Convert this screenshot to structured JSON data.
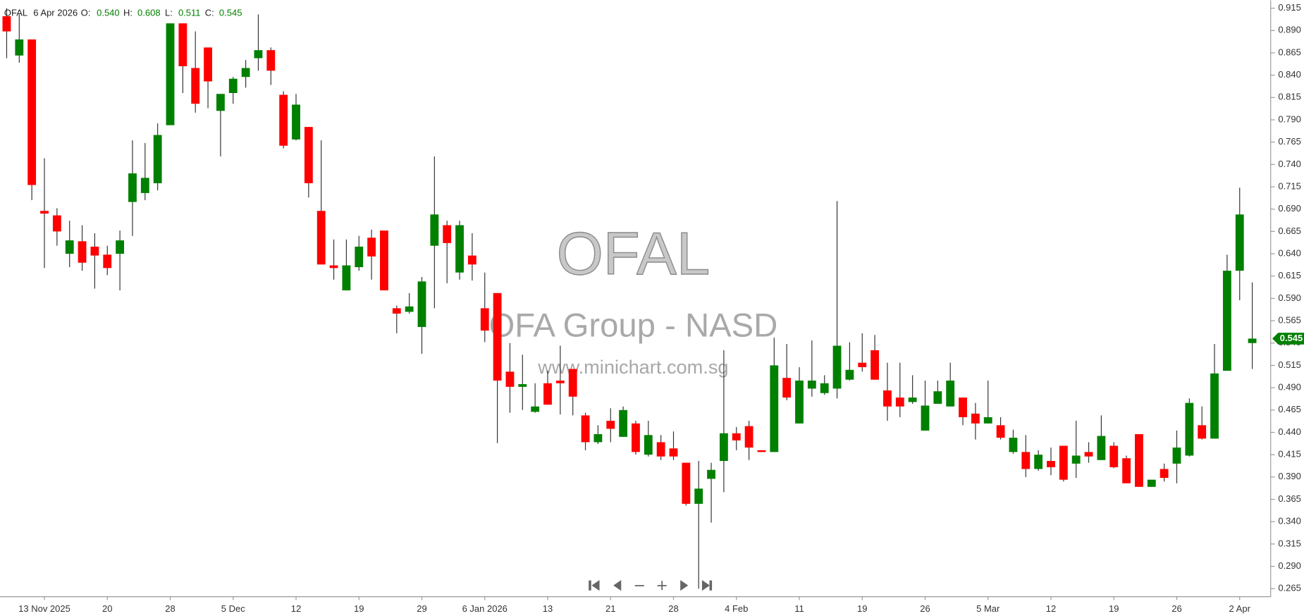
{
  "header": {
    "symbol": "OFAL",
    "date": "6 Apr 2026",
    "fields": [
      {
        "key": "O:",
        "value": "0.540"
      },
      {
        "key": "H:",
        "value": "0.608"
      },
      {
        "key": "L:",
        "value": "0.511"
      },
      {
        "key": "C:",
        "value": "0.545"
      }
    ]
  },
  "watermark": {
    "symbol": "OFAL",
    "name": "OFA Group - NASD",
    "site": "www.minichart.com.sg"
  },
  "chart_data": {
    "type": "candlestick",
    "up_color": "#008000",
    "down_color": "#ff0000",
    "wick_color": "#333333",
    "ylim": [
      0.256,
      0.924
    ],
    "yticks": [
      0.265,
      {
        "value": 0.29,
        "label": "0.290"
      },
      0.315,
      {
        "value": 0.34,
        "label": "0.340"
      },
      0.365,
      {
        "value": 0.39,
        "label": "0.390"
      },
      0.415,
      {
        "value": 0.44,
        "label": "0.440"
      },
      0.465,
      {
        "value": 0.49,
        "label": "0.490"
      },
      0.515,
      {
        "value": 0.54,
        "label": "0.540"
      },
      0.565,
      {
        "value": 0.59,
        "label": "0.590"
      },
      0.615,
      {
        "value": 0.64,
        "label": "0.640"
      },
      0.665,
      {
        "value": 0.69,
        "label": "0.690"
      },
      0.715,
      {
        "value": 0.74,
        "label": "0.740"
      },
      0.765,
      {
        "value": 0.79,
        "label": "0.790"
      },
      0.815,
      {
        "value": 0.84,
        "label": "0.840"
      },
      0.865,
      {
        "value": 0.89,
        "label": "0.890"
      },
      0.915
    ],
    "categories": [
      null,
      null,
      null,
      "13 Nov 2025",
      null,
      null,
      null,
      null,
      "20",
      null,
      null,
      null,
      null,
      "28",
      null,
      null,
      null,
      null,
      "5 Dec",
      null,
      null,
      null,
      null,
      "12",
      null,
      null,
      null,
      null,
      "19",
      null,
      null,
      null,
      null,
      "29",
      null,
      null,
      null,
      null,
      "6 Jan 2026",
      null,
      null,
      null,
      null,
      "13",
      null,
      null,
      null,
      null,
      "21",
      null,
      null,
      null,
      null,
      "28",
      null,
      null,
      null,
      null,
      "4 Feb",
      null,
      null,
      null,
      null,
      "11",
      null,
      null,
      null,
      null,
      "19",
      null,
      null,
      null,
      null,
      "26",
      null,
      null,
      null,
      null,
      "5 Mar",
      null,
      null,
      null,
      null,
      "12",
      null,
      null,
      null,
      null,
      "19",
      null,
      null,
      null,
      null,
      "26",
      null,
      null,
      null,
      null,
      "2 Apr",
      null
    ],
    "open": [
      0.906,
      0.862,
      0.88,
      0.688,
      0.683,
      0.64,
      0.654,
      0.648,
      0.639,
      0.64,
      0.698,
      0.708,
      0.719,
      0.784,
      0.898,
      0.848,
      0.871,
      0.8,
      0.82,
      0.838,
      0.859,
      0.868,
      0.818,
      0.768,
      0.782,
      0.688,
      0.627,
      0.599,
      0.625,
      0.658,
      0.666,
      0.579,
      0.575,
      0.558,
      0.649,
      0.672,
      0.619,
      0.638,
      0.579,
      0.596,
      0.508,
      0.491,
      0.463,
      0.495,
      0.498,
      0.511,
      0.459,
      0.429,
      0.453,
      0.435,
      0.45,
      0.415,
      0.429,
      0.422,
      0.406,
      0.36,
      0.388,
      0.408,
      0.439,
      0.447,
      0.42,
      0.418,
      0.501,
      0.45,
      0.489,
      0.484,
      0.489,
      0.499,
      0.518,
      0.532,
      0.487,
      0.479,
      0.474,
      0.442,
      0.472,
      0.469,
      0.479,
      0.461,
      0.45,
      0.448,
      0.418,
      0.418,
      0.399,
      0.408,
      0.425,
      0.405,
      0.418,
      0.409,
      0.425,
      0.411,
      0.438,
      0.379,
      0.399,
      0.405,
      0.414,
      0.448,
      0.433,
      0.509,
      0.621,
      0.54
    ],
    "high": [
      0.915,
      0.908,
      0.88,
      0.747,
      0.691,
      0.677,
      0.672,
      0.663,
      0.649,
      0.666,
      0.767,
      0.764,
      0.786,
      0.898,
      0.898,
      0.889,
      0.871,
      0.819,
      0.838,
      0.857,
      0.908,
      0.871,
      0.822,
      0.819,
      0.782,
      0.767,
      0.656,
      0.656,
      0.66,
      0.667,
      0.666,
      0.582,
      0.596,
      0.614,
      0.749,
      0.677,
      0.677,
      0.663,
      0.619,
      0.596,
      0.54,
      0.527,
      0.495,
      0.509,
      0.537,
      0.511,
      0.462,
      0.448,
      0.467,
      0.469,
      0.453,
      0.453,
      0.437,
      0.441,
      0.406,
      0.408,
      0.406,
      0.532,
      0.446,
      0.453,
      0.42,
      0.546,
      0.539,
      0.513,
      0.543,
      0.504,
      0.699,
      0.541,
      0.551,
      0.549,
      0.518,
      0.518,
      0.504,
      0.498,
      0.498,
      0.518,
      0.479,
      0.473,
      0.498,
      0.457,
      0.443,
      0.437,
      0.42,
      0.423,
      0.425,
      0.453,
      0.429,
      0.459,
      0.429,
      0.414,
      0.438,
      0.387,
      0.405,
      0.442,
      0.478,
      0.469,
      0.539,
      0.639,
      0.714,
      0.608
    ],
    "low": [
      0.859,
      0.854,
      0.7,
      0.624,
      0.649,
      0.625,
      0.621,
      0.601,
      0.616,
      0.599,
      0.66,
      0.7,
      0.711,
      0.784,
      0.82,
      0.798,
      0.803,
      0.749,
      0.808,
      0.826,
      0.845,
      0.829,
      0.758,
      0.767,
      0.703,
      0.628,
      0.611,
      0.599,
      0.621,
      0.611,
      0.599,
      0.551,
      0.573,
      0.528,
      0.579,
      0.607,
      0.611,
      0.61,
      0.541,
      0.428,
      0.462,
      0.465,
      0.462,
      0.471,
      0.46,
      0.459,
      0.42,
      0.427,
      0.429,
      0.435,
      0.415,
      0.413,
      0.409,
      0.409,
      0.358,
      0.265,
      0.339,
      0.373,
      0.42,
      0.409,
      0.418,
      0.418,
      0.476,
      0.45,
      0.48,
      0.482,
      0.478,
      0.498,
      0.508,
      0.499,
      0.453,
      0.457,
      0.472,
      0.442,
      0.472,
      0.469,
      0.448,
      0.432,
      0.45,
      0.432,
      0.416,
      0.39,
      0.397,
      0.392,
      0.385,
      0.389,
      0.406,
      0.409,
      0.4,
      0.383,
      0.379,
      0.379,
      0.385,
      0.383,
      0.413,
      0.432,
      0.433,
      0.509,
      0.588,
      0.511
    ],
    "close": [
      0.889,
      0.88,
      0.717,
      0.685,
      0.665,
      0.655,
      0.63,
      0.638,
      0.624,
      0.655,
      0.73,
      0.725,
      0.773,
      0.898,
      0.85,
      0.808,
      0.833,
      0.819,
      0.836,
      0.848,
      0.868,
      0.845,
      0.761,
      0.807,
      0.719,
      0.628,
      0.624,
      0.627,
      0.648,
      0.637,
      0.599,
      0.573,
      0.581,
      0.609,
      0.684,
      0.652,
      0.672,
      0.628,
      0.554,
      0.498,
      0.491,
      0.494,
      0.469,
      0.471,
      0.495,
      0.48,
      0.429,
      0.438,
      0.444,
      0.465,
      0.418,
      0.437,
      0.413,
      0.413,
      0.36,
      0.377,
      0.398,
      0.439,
      0.431,
      0.423,
      0.418,
      0.515,
      0.479,
      0.498,
      0.498,
      0.495,
      0.537,
      0.51,
      0.513,
      0.499,
      0.469,
      0.469,
      0.479,
      0.47,
      0.486,
      0.498,
      0.457,
      0.45,
      0.457,
      0.434,
      0.434,
      0.399,
      0.415,
      0.401,
      0.387,
      0.414,
      0.413,
      0.436,
      0.401,
      0.383,
      0.379,
      0.387,
      0.389,
      0.423,
      0.473,
      0.433,
      0.506,
      0.621,
      0.684,
      0.545
    ]
  }
}
